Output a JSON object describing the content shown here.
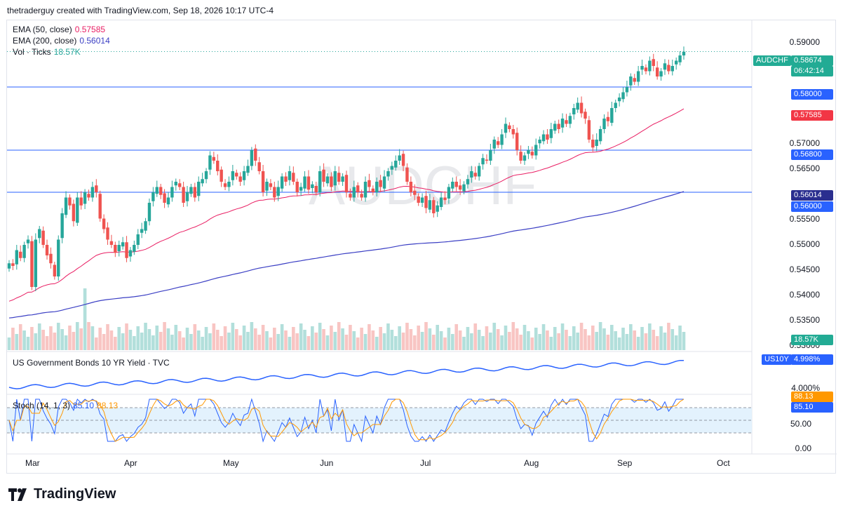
{
  "header": {
    "text": "thetraderguy created with TradingView.com, Sep 18, 2026 10:17 UTC-4"
  },
  "watermark": "AUDCHF",
  "legend": {
    "ema50": {
      "label": "EMA (50, close)",
      "value": "0.57585",
      "color": "#e91e63"
    },
    "ema200": {
      "label": "EMA (200, close)",
      "value": "0.56014",
      "color": "#3b3fc4"
    },
    "vol": {
      "label": "Vol · Ticks",
      "value": "18.57K",
      "color": "#26a69a"
    },
    "bond": {
      "label": "US Government Bonds 10 YR Yield · TVC"
    },
    "stoch": {
      "label": "Stoch (14, 1, 3)",
      "k": "85.10",
      "d": "88.13",
      "k_color": "#2962ff",
      "d_color": "#ff9800"
    }
  },
  "price_axis": [
    "0.59000",
    "0.57000",
    "0.56500",
    "0.55500",
    "0.55000",
    "0.54500",
    "0.54000",
    "0.53500",
    "0.53000"
  ],
  "tags": {
    "symbol": "AUDCHF",
    "price": "0.58674",
    "countdown": "06:42:14",
    "level_1": "0.58000",
    "ema50": "0.57585",
    "level_2": "0.56800",
    "ema200": "0.56014",
    "level_3": "0.56000",
    "volume": "18.57K",
    "bond_symbol": "US10Y",
    "bond_value": "4.998%",
    "bond_axis": "4.000%",
    "stoch_d": "88.13",
    "stoch_k": "85.10",
    "stoch_50": "50.00",
    "stoch_0": "0.00"
  },
  "colors": {
    "up": "#26a69a",
    "down": "#ef5350",
    "level_line": "#2962ff",
    "tag_blue": "#2962ff",
    "tag_red": "#f23645",
    "tag_green": "#22ab94",
    "bond": "#2962ff"
  },
  "time_axis": [
    "Mar",
    "Apr",
    "May",
    "Jun",
    "Jul",
    "Aug",
    "Sep",
    "Oct"
  ],
  "logo_text": "TradingView",
  "chart_data": {
    "type": "candlestick",
    "symbol": "AUDCHF",
    "ylim": [
      0.53,
      0.592
    ],
    "horizontal_levels": [
      0.58,
      0.568,
      0.56
    ],
    "last_price": 0.58674,
    "ema50_last": 0.57585,
    "ema200_last": 0.56014,
    "closes": [
      0.5465,
      0.546,
      0.549,
      0.5475,
      0.55,
      0.551,
      0.542,
      0.551,
      0.553,
      0.55,
      0.548,
      0.5465,
      0.544,
      0.551,
      0.556,
      0.559,
      0.5575,
      0.5545,
      0.559,
      0.5575,
      0.56,
      0.559,
      0.561,
      0.56,
      0.555,
      0.553,
      0.551,
      0.55,
      0.5485,
      0.55,
      0.5505,
      0.5475,
      0.549,
      0.55,
      0.552,
      0.553,
      0.5545,
      0.558,
      0.56,
      0.561,
      0.5595,
      0.558,
      0.559,
      0.561,
      0.562,
      0.561,
      0.558,
      0.56,
      0.561,
      0.559,
      0.562,
      0.5625,
      0.564,
      0.567,
      0.566,
      0.564,
      0.562,
      0.561,
      0.562,
      0.564,
      0.563,
      0.562,
      0.564,
      0.565,
      0.568,
      0.566,
      0.564,
      0.56,
      0.562,
      0.561,
      0.559,
      0.561,
      0.563,
      0.562,
      0.564,
      0.562,
      0.56,
      0.561,
      0.563,
      0.5605,
      0.5615,
      0.56,
      0.564,
      0.562,
      0.563,
      0.561,
      0.564,
      0.562,
      0.563,
      0.56,
      0.559,
      0.561,
      0.56,
      0.559,
      0.562,
      0.561,
      0.56,
      0.562,
      0.561,
      0.563,
      0.564,
      0.565,
      0.566,
      0.567,
      0.565,
      0.562,
      0.56,
      0.5595,
      0.558,
      0.559,
      0.557,
      0.5585,
      0.556,
      0.5575,
      0.559,
      0.5585,
      0.561,
      0.562,
      0.561,
      0.5605,
      0.5615,
      0.5625,
      0.564,
      0.563,
      0.565,
      0.5665,
      0.566,
      0.568,
      0.57,
      0.569,
      0.571,
      0.573,
      0.572,
      0.571,
      0.568,
      0.566,
      0.567,
      0.568,
      0.567,
      0.569,
      0.57,
      0.571,
      0.57,
      0.572,
      0.573,
      0.572,
      0.574,
      0.573,
      0.5745,
      0.576,
      0.577,
      0.575,
      0.574,
      0.57,
      0.5685,
      0.57,
      0.572,
      0.574,
      0.5735,
      0.576,
      0.577,
      0.578,
      0.579,
      0.58,
      0.582,
      0.581,
      0.583,
      0.584,
      0.583,
      0.585,
      0.584,
      0.582,
      0.583,
      0.5845,
      0.583,
      0.584,
      0.585,
      0.586,
      0.5867
    ]
  }
}
